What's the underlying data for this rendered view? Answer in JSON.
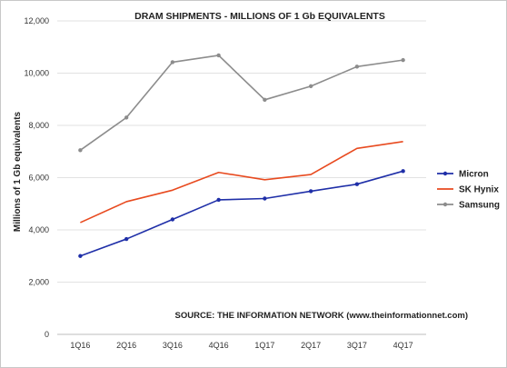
{
  "chart_data": {
    "type": "line",
    "title": "DRAM SHIPMENTS - MILLIONS OF 1 Gb EQUIVALENTS",
    "xlabel": "",
    "ylabel": "Millions of 1 Gb equivalents",
    "categories": [
      "1Q16",
      "2Q16",
      "3Q16",
      "4Q16",
      "1Q17",
      "2Q17",
      "3Q17",
      "4Q17"
    ],
    "ylim": [
      0,
      12000
    ],
    "yticks": [
      0,
      2000,
      4000,
      6000,
      8000,
      10000,
      12000
    ],
    "ytick_labels": [
      "0",
      "2,000",
      "4,000",
      "6,000",
      "8,000",
      "10,000",
      "12,000"
    ],
    "grid": "horizontal",
    "legend_position": "right",
    "series": [
      {
        "name": "Micron",
        "color": "#1f2fa8",
        "marker": "circle",
        "values": [
          3000,
          3650,
          4400,
          5150,
          5200,
          5480,
          5750,
          6250
        ]
      },
      {
        "name": "SK Hynix",
        "color": "#e84a1f",
        "marker": "none",
        "values": [
          4280,
          5080,
          5520,
          6200,
          5920,
          6120,
          7120,
          7380
        ]
      },
      {
        "name": "Samsung",
        "color": "#8c8c8c",
        "marker": "circle",
        "values": [
          7050,
          8300,
          10420,
          10680,
          8980,
          9500,
          10250,
          10500
        ]
      }
    ],
    "annotation": "SOURCE: THE INFORMATION NETWORK (www.theinformationnet.com)"
  }
}
